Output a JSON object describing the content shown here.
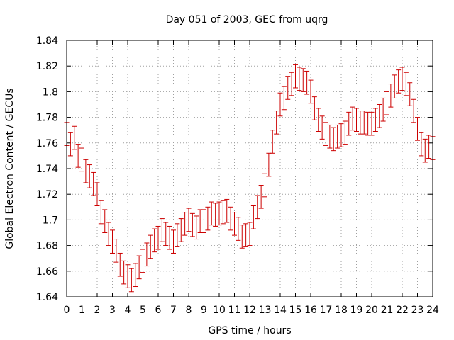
{
  "chart_data": {
    "type": "line",
    "title": "Day 051 of 2003, GEC from uqrg",
    "xlabel": "GPS time / hours",
    "ylabel": "Global Electron Content / GECUs",
    "xlim": [
      0,
      24
    ],
    "ylim": [
      1.64,
      1.84
    ],
    "x_ticks": [
      0,
      1,
      2,
      3,
      4,
      5,
      6,
      7,
      8,
      9,
      10,
      11,
      12,
      13,
      14,
      15,
      16,
      17,
      18,
      19,
      20,
      21,
      22,
      23,
      24
    ],
    "y_ticks": [
      1.64,
      1.66,
      1.68,
      1.7,
      1.72,
      1.74,
      1.76,
      1.78,
      1.8,
      1.82,
      1.84
    ],
    "y_tick_labels": [
      "1.64",
      "1.66",
      "1.68",
      "1.7",
      "1.72",
      "1.74",
      "1.76",
      "1.78",
      "1.8",
      "1.82",
      "1.84"
    ],
    "grid": true,
    "error_bar_color": "#cc0000",
    "series": [
      {
        "style": "errorbars",
        "error": 0.009,
        "x": [
          0.0,
          0.25,
          0.5,
          0.75,
          1.0,
          1.25,
          1.5,
          1.75,
          2.0,
          2.25,
          2.5,
          2.75,
          3.0,
          3.25,
          3.5,
          3.75,
          4.0,
          4.25,
          4.5,
          4.75,
          5.0,
          5.25,
          5.5,
          5.75,
          6.0,
          6.25,
          6.5,
          6.75,
          7.0,
          7.25,
          7.5,
          7.75,
          8.0,
          8.25,
          8.5,
          8.75,
          9.0,
          9.25,
          9.5,
          9.75,
          10.0,
          10.25,
          10.5,
          10.75,
          11.0,
          11.25,
          11.5,
          11.75,
          12.0,
          12.25,
          12.5,
          12.75,
          13.0,
          13.25,
          13.5,
          13.75,
          14.0,
          14.25,
          14.5,
          14.75,
          15.0,
          15.25,
          15.5,
          15.75,
          16.0,
          16.25,
          16.5,
          16.75,
          17.0,
          17.25,
          17.5,
          17.75,
          18.0,
          18.25,
          18.5,
          18.75,
          19.0,
          19.25,
          19.5,
          19.75,
          20.0,
          20.25,
          20.5,
          20.75,
          21.0,
          21.25,
          21.5,
          21.75,
          22.0,
          22.25,
          22.5,
          22.75,
          23.0,
          23.25,
          23.5,
          23.75,
          24.0
        ],
        "y": [
          1.767,
          1.759,
          1.764,
          1.75,
          1.747,
          1.738,
          1.734,
          1.728,
          1.72,
          1.706,
          1.699,
          1.689,
          1.683,
          1.676,
          1.665,
          1.659,
          1.656,
          1.653,
          1.657,
          1.663,
          1.668,
          1.673,
          1.679,
          1.684,
          1.686,
          1.692,
          1.689,
          1.686,
          1.683,
          1.688,
          1.692,
          1.697,
          1.7,
          1.696,
          1.694,
          1.699,
          1.699,
          1.701,
          1.705,
          1.704,
          1.705,
          1.706,
          1.707,
          1.701,
          1.697,
          1.693,
          1.687,
          1.688,
          1.689,
          1.702,
          1.71,
          1.718,
          1.727,
          1.743,
          1.761,
          1.776,
          1.79,
          1.795,
          1.803,
          1.806,
          1.812,
          1.81,
          1.809,
          1.807,
          1.8,
          1.787,
          1.778,
          1.772,
          1.767,
          1.765,
          1.763,
          1.765,
          1.766,
          1.768,
          1.775,
          1.779,
          1.778,
          1.776,
          1.776,
          1.775,
          1.775,
          1.778,
          1.781,
          1.786,
          1.791,
          1.797,
          1.804,
          1.808,
          1.81,
          1.806,
          1.798,
          1.785,
          1.771,
          1.759,
          1.754,
          1.757,
          1.756
        ]
      }
    ]
  }
}
